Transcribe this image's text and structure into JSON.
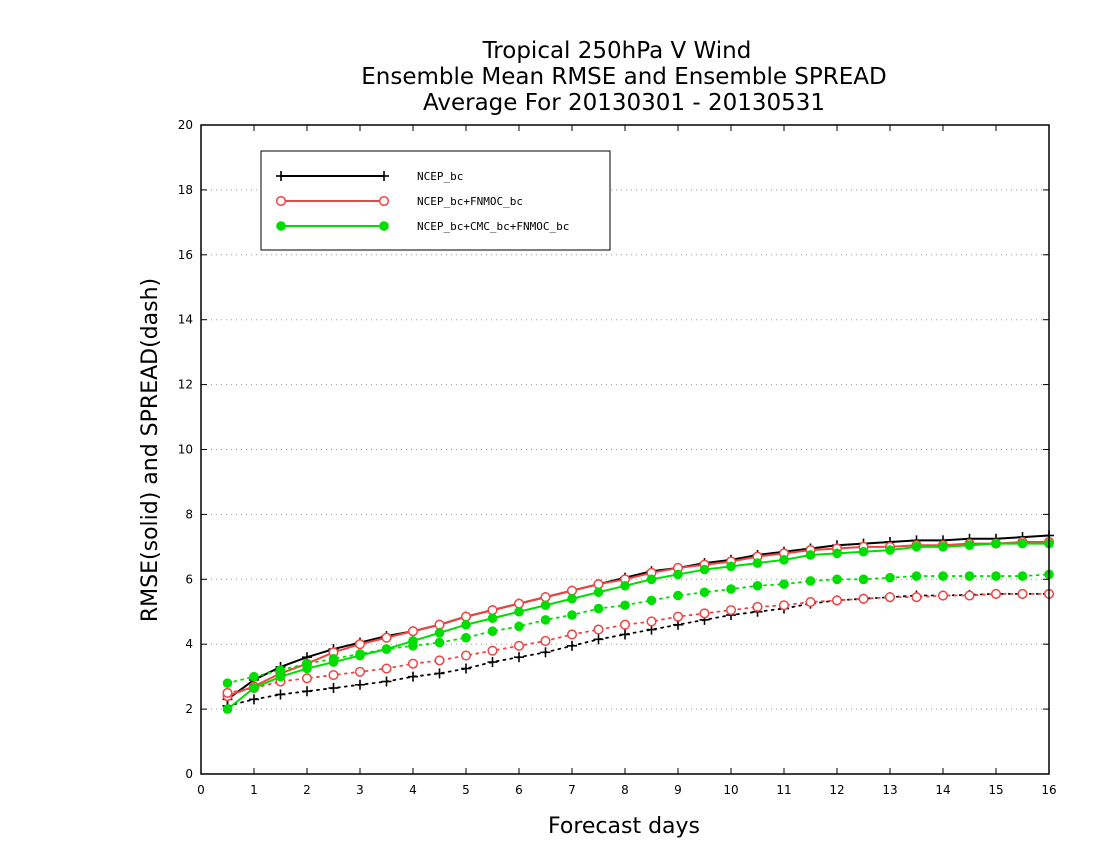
{
  "chart_data": {
    "type": "line",
    "title_lines": [
      "Tropical 250hPa V Wind",
      "Ensemble Mean RMSE and Ensemble SPREAD",
      "Average For 20130301 - 20130531"
    ],
    "xlabel": "Forecast days",
    "ylabel": "RMSE(solid) and SPREAD(dash)",
    "xlim": [
      0,
      16
    ],
    "ylim": [
      0,
      20
    ],
    "x_ticks": [
      "0",
      "1",
      "2",
      "3",
      "4",
      "5",
      "6",
      "7",
      "8",
      "9",
      "10",
      "11",
      "12",
      "13",
      "14",
      "15",
      "16"
    ],
    "y_ticks": [
      "0",
      "2",
      "4",
      "6",
      "8",
      "10",
      "12",
      "14",
      "16",
      "18",
      "20"
    ],
    "grid": "dotted horizontal",
    "legend_position": "top-left",
    "x": [
      0.5,
      1,
      1.5,
      2,
      2.5,
      3,
      3.5,
      4,
      4.5,
      5,
      5.5,
      6,
      6.5,
      7,
      7.5,
      8,
      8.5,
      9,
      9.5,
      10,
      10.5,
      11,
      11.5,
      12,
      12.5,
      13,
      13.5,
      14,
      14.5,
      15,
      15.5,
      16
    ],
    "series": [
      {
        "name": "NCEP_bc",
        "color": "#000000",
        "marker": "plus",
        "rmse": [
          2.3,
          2.9,
          3.3,
          3.6,
          3.85,
          4.05,
          4.25,
          4.4,
          4.6,
          4.85,
          5.05,
          5.25,
          5.45,
          5.65,
          5.85,
          6.05,
          6.25,
          6.35,
          6.5,
          6.6,
          6.75,
          6.85,
          6.95,
          7.05,
          7.1,
          7.15,
          7.2,
          7.2,
          7.25,
          7.25,
          7.3,
          7.35
        ],
        "spread": [
          2.1,
          2.3,
          2.45,
          2.55,
          2.65,
          2.75,
          2.85,
          3.0,
          3.1,
          3.25,
          3.45,
          3.6,
          3.75,
          3.95,
          4.15,
          4.3,
          4.45,
          4.6,
          4.75,
          4.9,
          5.0,
          5.1,
          5.25,
          5.35,
          5.4,
          5.45,
          5.5,
          5.5,
          5.52,
          5.55,
          5.55,
          5.55
        ]
      },
      {
        "name": "NCEP_bc+FNMOC_bc",
        "color": "#ee4444",
        "marker": "open-circle",
        "rmse": [
          2.4,
          2.7,
          3.1,
          3.4,
          3.75,
          4.0,
          4.2,
          4.4,
          4.6,
          4.85,
          5.05,
          5.25,
          5.45,
          5.65,
          5.85,
          6.0,
          6.2,
          6.35,
          6.45,
          6.55,
          6.7,
          6.8,
          6.9,
          6.95,
          7.0,
          7.0,
          7.05,
          7.05,
          7.1,
          7.1,
          7.15,
          7.15
        ],
        "spread": [
          2.5,
          2.65,
          2.85,
          2.95,
          3.05,
          3.15,
          3.25,
          3.4,
          3.5,
          3.65,
          3.8,
          3.95,
          4.1,
          4.3,
          4.45,
          4.6,
          4.7,
          4.85,
          4.95,
          5.05,
          5.15,
          5.2,
          5.3,
          5.35,
          5.4,
          5.45,
          5.45,
          5.5,
          5.5,
          5.55,
          5.55,
          5.55
        ]
      },
      {
        "name": "NCEP_bc+CMC_bc+FNMOC_bc",
        "color": "#00dd00",
        "marker": "filled-circle",
        "rmse": [
          2.0,
          2.65,
          3.0,
          3.25,
          3.45,
          3.65,
          3.85,
          4.1,
          4.35,
          4.6,
          4.8,
          5.0,
          5.2,
          5.4,
          5.6,
          5.8,
          6.0,
          6.15,
          6.3,
          6.4,
          6.5,
          6.6,
          6.75,
          6.8,
          6.85,
          6.9,
          7.0,
          7.0,
          7.05,
          7.1,
          7.1,
          7.1
        ],
        "spread": [
          2.8,
          3.0,
          3.2,
          3.4,
          3.55,
          3.7,
          3.85,
          3.95,
          4.05,
          4.2,
          4.4,
          4.55,
          4.75,
          4.9,
          5.1,
          5.2,
          5.35,
          5.5,
          5.6,
          5.7,
          5.8,
          5.85,
          5.95,
          6.0,
          6.0,
          6.05,
          6.1,
          6.1,
          6.1,
          6.1,
          6.1,
          6.15
        ]
      }
    ]
  }
}
